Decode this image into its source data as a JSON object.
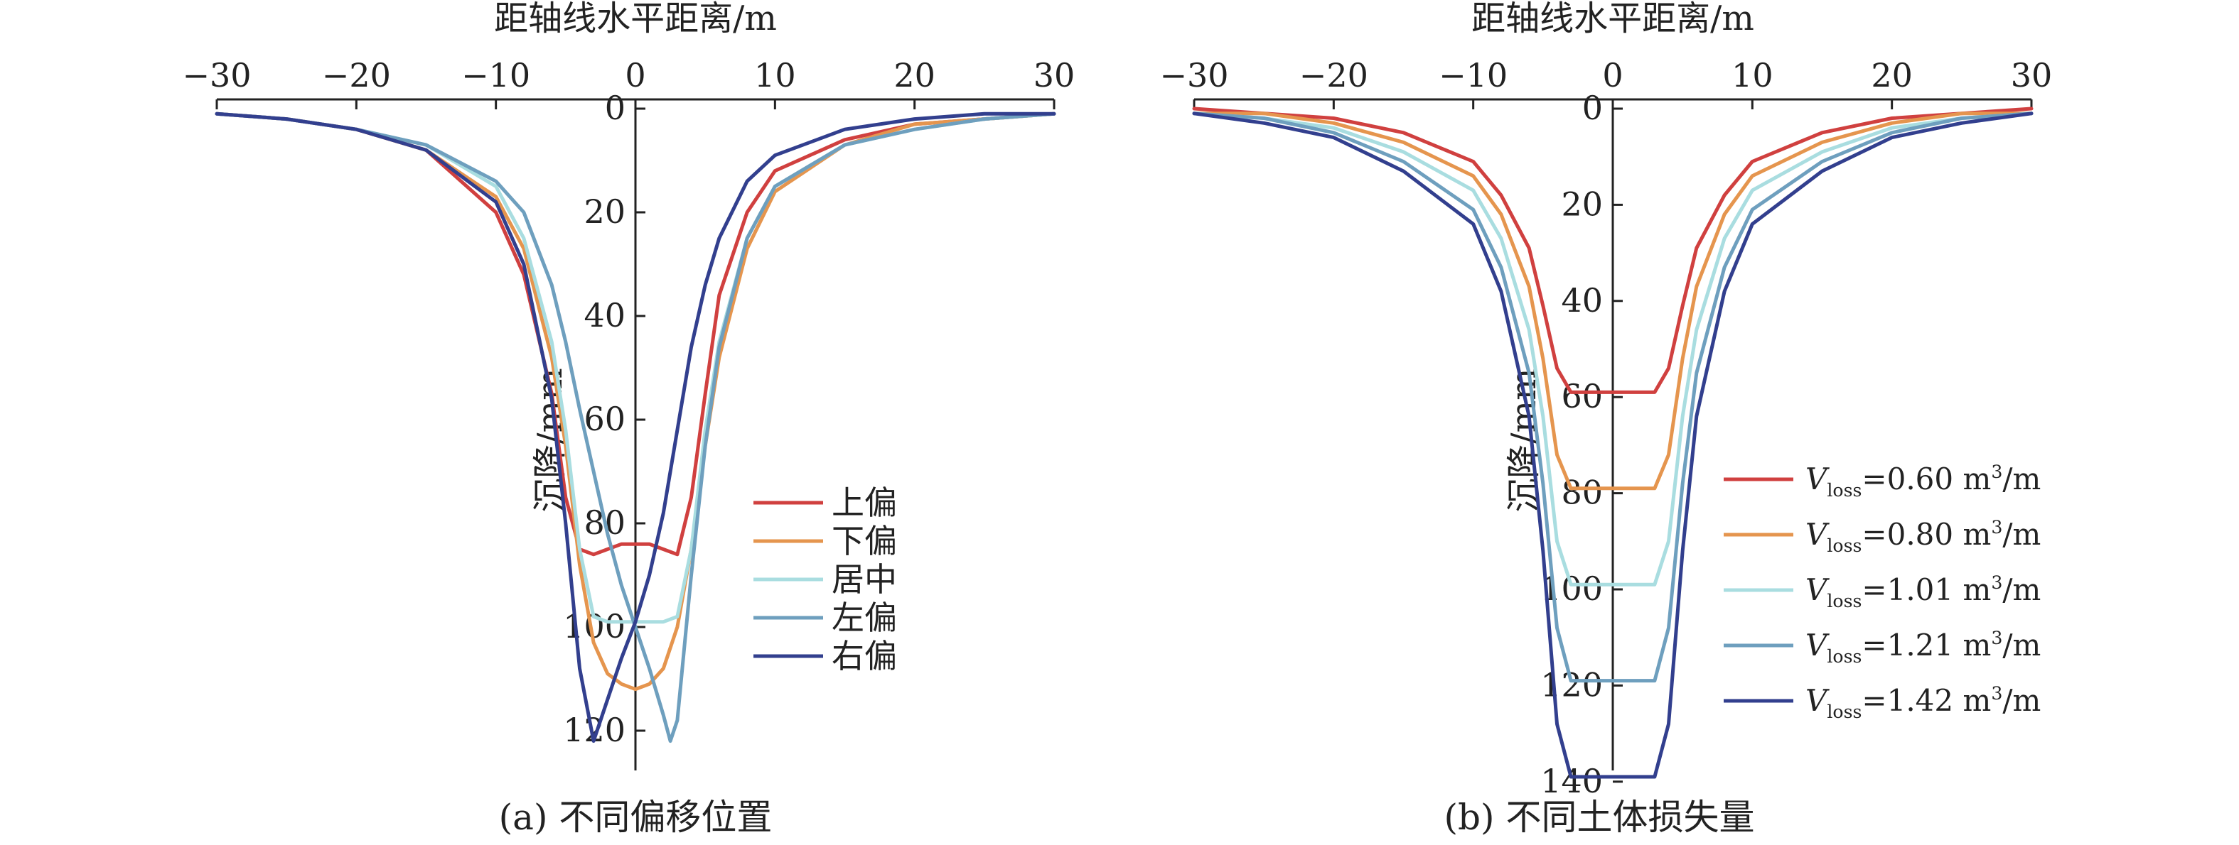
{
  "chart_data": [
    {
      "type": "line",
      "title": "(a) 不同偏移位置",
      "xlabel": "距轴线水平距离/m",
      "ylabel": "沉降/mm",
      "xlim": [
        -30,
        30
      ],
      "ylim": [
        0,
        130
      ],
      "y_inverted": true,
      "x_axis_position": "top",
      "xticks": [
        -30,
        -20,
        -10,
        0,
        10,
        20,
        30
      ],
      "yticks": [
        0,
        20,
        40,
        60,
        80,
        100,
        120
      ],
      "grid": false,
      "legend_position": "center-right",
      "series": [
        {
          "name": "上偏",
          "color": "#d0403f",
          "x": [
            -30,
            -25,
            -20,
            -15,
            -10,
            -8,
            -6,
            -5,
            -4,
            -3,
            -2,
            -1,
            0,
            1,
            2,
            3,
            4,
            5,
            6,
            8,
            10,
            15,
            20,
            25,
            30
          ],
          "y": [
            1,
            2,
            4,
            8,
            20,
            32,
            55,
            75,
            85,
            86,
            85,
            84,
            84,
            84,
            85,
            86,
            75,
            55,
            36,
            20,
            12,
            6,
            3,
            2,
            1
          ]
        },
        {
          "name": "下偏",
          "color": "#e5954e",
          "x": [
            -30,
            -25,
            -20,
            -15,
            -10,
            -8,
            -6,
            -5,
            -4,
            -3,
            -2,
            -1,
            0,
            1,
            2,
            3,
            4,
            5,
            6,
            8,
            10,
            15,
            20,
            25,
            30
          ],
          "y": [
            1,
            2,
            4,
            8,
            17,
            27,
            48,
            65,
            88,
            103,
            109,
            111,
            112,
            111,
            108,
            100,
            85,
            65,
            48,
            27,
            16,
            7,
            3,
            2,
            1
          ]
        },
        {
          "name": "居中",
          "color": "#a9dde0",
          "x": [
            -30,
            -25,
            -20,
            -15,
            -10,
            -8,
            -6,
            -5,
            -4,
            -3,
            -2,
            -1,
            0,
            1,
            2,
            3,
            4,
            5,
            6,
            8,
            10,
            15,
            20,
            25,
            30
          ],
          "y": [
            1,
            2,
            4,
            7,
            15,
            25,
            45,
            62,
            85,
            98,
            99,
            99,
            99,
            99,
            99,
            98,
            85,
            62,
            45,
            25,
            15,
            7,
            4,
            2,
            1
          ]
        },
        {
          "name": "左偏",
          "color": "#6e9fbe",
          "x": [
            -30,
            -25,
            -20,
            -15,
            -10,
            -8,
            -6,
            -5,
            -4,
            -3,
            -2,
            -1,
            0,
            1,
            2,
            2.5,
            3,
            4,
            5,
            6,
            8,
            10,
            15,
            20,
            25,
            30
          ],
          "y": [
            1,
            2,
            4,
            7,
            14,
            20,
            34,
            45,
            58,
            70,
            82,
            92,
            100,
            108,
            117,
            122,
            118,
            90,
            65,
            46,
            25,
            15,
            7,
            4,
            2,
            1
          ]
        },
        {
          "name": "右偏",
          "color": "#323f8e",
          "x": [
            -30,
            -25,
            -20,
            -15,
            -10,
            -8,
            -6,
            -5,
            -4,
            -3,
            -2.5,
            -2,
            -1,
            0,
            1,
            2,
            3,
            4,
            5,
            6,
            8,
            10,
            15,
            20,
            25,
            30
          ],
          "y": [
            1,
            2,
            4,
            8,
            18,
            30,
            56,
            80,
            108,
            122,
            118,
            114,
            106,
            99,
            90,
            78,
            62,
            46,
            34,
            25,
            14,
            9,
            4,
            2,
            1,
            1
          ]
        }
      ]
    },
    {
      "type": "line",
      "title": "(b) 不同土体损失量",
      "xlabel": "距轴线水平距离/m",
      "ylabel": "沉降/mm",
      "xlim": [
        -30,
        30
      ],
      "ylim": [
        0,
        140
      ],
      "y_inverted": true,
      "x_axis_position": "top",
      "xticks": [
        -30,
        -20,
        -10,
        0,
        10,
        20,
        30
      ],
      "yticks": [
        0,
        20,
        40,
        60,
        80,
        100,
        120,
        140
      ],
      "grid": false,
      "legend_position": "center-right",
      "series": [
        {
          "name": "V_loss=0.60 m³/m",
          "legend": {
            "v": "V",
            "sub": "loss",
            "rest": "=0.60 m",
            "sup": "3",
            "tail": "/m"
          },
          "color": "#d0403f",
          "x": [
            -30,
            -25,
            -20,
            -15,
            -10,
            -8,
            -6,
            -5,
            -4,
            -3,
            -2,
            -1,
            0,
            1,
            2,
            3,
            4,
            5,
            6,
            8,
            10,
            15,
            20,
            25,
            30
          ],
          "y": [
            0,
            1,
            2,
            5,
            11,
            18,
            29,
            41,
            54,
            59,
            59,
            59,
            59,
            59,
            59,
            59,
            54,
            41,
            29,
            18,
            11,
            5,
            2,
            1,
            0
          ]
        },
        {
          "name": "V_loss=0.80 m³/m",
          "legend": {
            "v": "V",
            "sub": "loss",
            "rest": "=0.80 m",
            "sup": "3",
            "tail": "/m"
          },
          "color": "#e5954e",
          "x": [
            -30,
            -25,
            -20,
            -15,
            -10,
            -8,
            -6,
            -5,
            -4,
            -3,
            -2,
            -1,
            0,
            1,
            2,
            3,
            4,
            5,
            6,
            8,
            10,
            15,
            20,
            25,
            30
          ],
          "y": [
            1,
            1,
            3,
            7,
            14,
            22,
            37,
            52,
            72,
            79,
            79,
            79,
            79,
            79,
            79,
            79,
            72,
            52,
            37,
            22,
            14,
            7,
            3,
            1,
            1
          ]
        },
        {
          "name": "V_loss=1.01 m³/m",
          "legend": {
            "v": "V",
            "sub": "loss",
            "rest": "=1.01 m",
            "sup": "3",
            "tail": "/m"
          },
          "color": "#a9dde0",
          "x": [
            -30,
            -25,
            -20,
            -15,
            -10,
            -8,
            -6,
            -5,
            -4,
            -3,
            -2,
            -1,
            0,
            1,
            2,
            3,
            4,
            5,
            6,
            8,
            10,
            15,
            20,
            25,
            30
          ],
          "y": [
            1,
            2,
            4,
            9,
            17,
            27,
            46,
            64,
            90,
            99,
            99,
            99,
            99,
            99,
            99,
            99,
            90,
            64,
            46,
            27,
            17,
            9,
            4,
            2,
            1
          ]
        },
        {
          "name": "V_loss=1.21 m³/m",
          "legend": {
            "v": "V",
            "sub": "loss",
            "rest": "=1.21 m",
            "sup": "3",
            "tail": "/m"
          },
          "color": "#6e9fbe",
          "x": [
            -30,
            -25,
            -20,
            -15,
            -10,
            -8,
            -6,
            -5,
            -4,
            -3,
            -2,
            -1,
            0,
            1,
            2,
            3,
            4,
            5,
            6,
            8,
            10,
            15,
            20,
            25,
            30
          ],
          "y": [
            1,
            2,
            5,
            11,
            21,
            33,
            55,
            78,
            108,
            119,
            119,
            119,
            119,
            119,
            119,
            119,
            108,
            78,
            55,
            33,
            21,
            11,
            5,
            2,
            1
          ]
        },
        {
          "name": "V_loss=1.42 m³/m",
          "legend": {
            "v": "V",
            "sub": "loss",
            "rest": "=1.42 m",
            "sup": "3",
            "tail": "/m"
          },
          "color": "#323f8e",
          "x": [
            -30,
            -25,
            -20,
            -15,
            -10,
            -8,
            -6,
            -5,
            -4,
            -3,
            -2,
            -1,
            0,
            1,
            2,
            3,
            4,
            5,
            6,
            8,
            10,
            15,
            20,
            25,
            30
          ],
          "y": [
            1,
            3,
            6,
            13,
            24,
            38,
            64,
            92,
            128,
            139,
            139,
            139,
            139,
            139,
            139,
            139,
            128,
            92,
            64,
            38,
            24,
            13,
            6,
            3,
            1
          ]
        }
      ]
    }
  ]
}
